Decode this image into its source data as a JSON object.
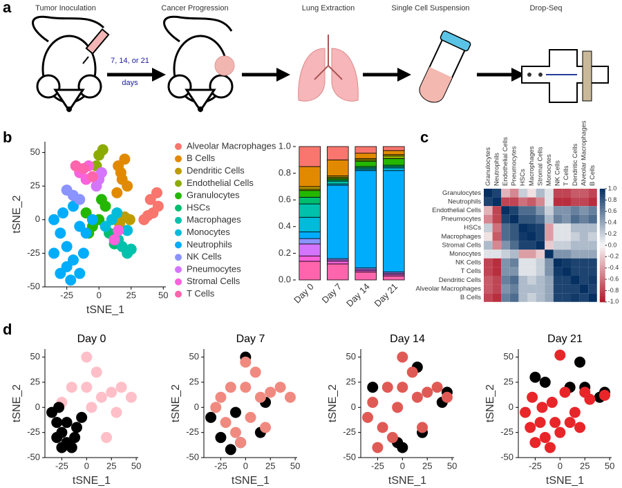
{
  "panel_labels": {
    "a": "a",
    "b": "b",
    "c": "c",
    "d": "d"
  },
  "schematic": {
    "steps": [
      "Tumor Inoculation",
      "Cancer Progression",
      "Lung Extraction",
      "Single Cell Suspension",
      "Drop-Seq"
    ],
    "interval": "7, 14, or 21",
    "interval_unit": "days"
  },
  "chart_data": [
    {
      "type": "scatter",
      "xlabel": "tSNE_1",
      "ylabel": "tSNE_2",
      "xlim": [
        -42,
        52
      ],
      "ylim": [
        -50,
        58
      ],
      "xticks": [
        -25,
        0,
        25,
        50
      ],
      "yticks": [
        -50,
        -25,
        0,
        25,
        50
      ],
      "series": [
        {
          "name": "Alveolar Macrophages",
          "color": "#F8766D",
          "x": [
            40,
            45,
            42,
            38,
            46,
            35
          ],
          "y": [
            15,
            20,
            5,
            3,
            10,
            0
          ]
        },
        {
          "name": "B Cells",
          "color": "#E18A00",
          "x": [
            15,
            18,
            20,
            14,
            22,
            17
          ],
          "y": [
            40,
            30,
            45,
            20,
            25,
            35
          ]
        },
        {
          "name": "Dendritic Cells",
          "color": "#BE9C00",
          "x": [
            16,
            20,
            24
          ],
          "y": [
            -3,
            2,
            0
          ]
        },
        {
          "name": "Endothelial Cells",
          "color": "#8CAB00",
          "x": [
            0,
            3,
            -2
          ],
          "y": [
            48,
            52,
            40
          ]
        },
        {
          "name": "Granulocytes",
          "color": "#24B700",
          "x": [
            -10,
            -5,
            0,
            5,
            -8,
            2
          ],
          "y": [
            5,
            -5,
            0,
            10,
            -10,
            15
          ]
        },
        {
          "name": "HSCs",
          "color": "#00BE70",
          "x": [
            12,
            8
          ],
          "y": [
            -18,
            -10
          ]
        },
        {
          "name": "Macrophages",
          "color": "#00C1AB",
          "x": [
            18,
            22,
            15,
            25
          ],
          "y": [
            -20,
            -25,
            -15,
            -22
          ]
        },
        {
          "name": "Monocytes",
          "color": "#00BBDA",
          "x": [
            5,
            10,
            14,
            22
          ],
          "y": [
            -5,
            0,
            5,
            -8
          ]
        },
        {
          "name": "Neutrophils",
          "color": "#00ACFC",
          "x": [
            -35,
            -30,
            -25,
            -20,
            -15,
            -10,
            -5,
            -35,
            -28,
            -20,
            -12,
            -30,
            -22,
            -15,
            -25
          ],
          "y": [
            0,
            -10,
            -20,
            -30,
            -40,
            -10,
            0,
            -25,
            5,
            10,
            -25,
            -40,
            -45,
            -5,
            -35
          ]
        },
        {
          "name": "NK Cells",
          "color": "#8B93FF",
          "x": [
            -25,
            -20,
            -15
          ],
          "y": [
            22,
            18,
            15
          ]
        },
        {
          "name": "Pneumocytes",
          "color": "#D575FE",
          "x": [
            0,
            -2,
            2
          ],
          "y": [
            30,
            25,
            35
          ]
        },
        {
          "name": "Stromal Cells",
          "color": "#F962DD",
          "x": [
            -15,
            -10,
            -8,
            12,
            15
          ],
          "y": [
            35,
            30,
            40,
            -15,
            -8
          ]
        },
        {
          "name": "T Cells",
          "color": "#FF65AC",
          "x": [
            -18,
            -12,
            -5
          ],
          "y": [
            40,
            38,
            32
          ]
        }
      ]
    },
    {
      "type": "bar",
      "stacked": true,
      "categories": [
        "Day 0",
        "Day 7",
        "Day 14",
        "Day 21"
      ],
      "ylim": [
        0,
        1
      ],
      "yticks": [
        {
          "value": 0,
          "label": "0.0"
        },
        0.2,
        0.4,
        0.6,
        0.8,
        {
          "value": 1,
          "label": "1.0"
        }
      ],
      "series": [
        {
          "color": "#FF65AC",
          "values": [
            0.14,
            0.12,
            0.06,
            0.03
          ]
        },
        {
          "color": "#F962DD",
          "values": [
            0.04,
            0.02,
            0.01,
            0.01
          ]
        },
        {
          "color": "#D575FE",
          "values": [
            0.09,
            0.01,
            0.01,
            0.01
          ]
        },
        {
          "color": "#8B93FF",
          "values": [
            0.04,
            0.01,
            0.01,
            0.01
          ]
        },
        {
          "color": "#00ACFC",
          "values": [
            0.05,
            0.55,
            0.73,
            0.76
          ]
        },
        {
          "color": "#00BBDA",
          "values": [
            0.11,
            0.01,
            0.01,
            0.02
          ]
        },
        {
          "color": "#00C1AB",
          "values": [
            0.1,
            0.02,
            0.01,
            0.01
          ]
        },
        {
          "color": "#00BE70",
          "values": [
            0.05,
            0.01,
            0.01,
            0.01
          ]
        },
        {
          "color": "#24B700",
          "values": [
            0.05,
            0.01,
            0.04,
            0.05
          ]
        },
        {
          "color": "#8CAB00",
          "values": [
            0.01,
            0.01,
            0.01,
            0.02
          ]
        },
        {
          "color": "#BE9C00",
          "values": [
            0.02,
            0.01,
            0.01,
            0.01
          ]
        },
        {
          "color": "#E18A00",
          "values": [
            0.15,
            0.12,
            0.04,
            0.03
          ]
        },
        {
          "color": "#F8766D",
          "values": [
            0.15,
            0.1,
            0.05,
            0.03
          ]
        }
      ]
    },
    {
      "type": "heatmap",
      "zlim": [
        -1,
        1
      ],
      "rows": [
        "Granulocytes",
        "Neutrophils",
        "Endothelial Cells",
        "Pneumocytes",
        "HSCs",
        "Macrophages",
        "Stromal Cells",
        "Monocytes",
        "NK Cells",
        "T Cells",
        "Dendritic Cells",
        "Alveolar Macrophages",
        "B Cells"
      ],
      "columns": [
        "Granulocytes",
        "Neutrophils",
        "Endothelial Cells",
        "Pneumocytes",
        "HSCs",
        "Macrophages",
        "Stromal Cells",
        "Monocytes",
        "NK Cells",
        "T Cells",
        "Dendritic Cells",
        "Alveolar Macrophages",
        "B Cells"
      ],
      "values": [
        [
          1,
          0.9,
          -0.3,
          -0.5,
          0.2,
          -0.1,
          0.3,
          0.1,
          -0.8,
          -0.8,
          -0.7,
          -0.7,
          -0.8
        ],
        [
          0.9,
          1,
          -0.8,
          -0.8,
          -0.6,
          -0.7,
          -0.5,
          0.1,
          -0.9,
          -0.9,
          -0.8,
          -0.8,
          -0.9
        ],
        [
          -0.3,
          -0.8,
          1,
          0.9,
          0.7,
          0.7,
          0.5,
          0.2,
          0.5,
          0.5,
          0.6,
          0.5,
          0.6
        ],
        [
          -0.5,
          -0.8,
          0.9,
          1,
          0.8,
          0.8,
          0.7,
          0.3,
          0.6,
          0.5,
          0.7,
          0.6,
          0.7
        ],
        [
          0.2,
          -0.6,
          0.7,
          0.8,
          1,
          0.95,
          0.9,
          -0.4,
          0.1,
          0.1,
          0.3,
          0.3,
          0.3
        ],
        [
          -0.1,
          -0.7,
          0.7,
          0.8,
          0.95,
          1,
          0.9,
          -0.4,
          0.1,
          0.1,
          0.2,
          0.3,
          0.2
        ],
        [
          0.3,
          -0.5,
          0.5,
          0.7,
          0.9,
          0.9,
          1,
          -0.2,
          0.2,
          0.2,
          0.3,
          0.3,
          0.3
        ],
        [
          0.1,
          0.1,
          0.2,
          0.3,
          -0.4,
          -0.4,
          -0.2,
          1,
          0.5,
          0.5,
          0.4,
          0.4,
          0.4
        ],
        [
          -0.8,
          -0.9,
          0.5,
          0.6,
          0.1,
          0.1,
          0.2,
          0.5,
          1,
          0.95,
          0.9,
          0.9,
          0.9
        ],
        [
          -0.8,
          -0.9,
          0.5,
          0.5,
          0.1,
          0.1,
          0.2,
          0.5,
          0.95,
          1,
          0.9,
          0.9,
          0.9
        ],
        [
          -0.7,
          -0.8,
          0.6,
          0.7,
          0.3,
          0.2,
          0.3,
          0.4,
          0.9,
          0.9,
          1,
          0.9,
          0.95
        ],
        [
          -0.7,
          -0.8,
          0.5,
          0.6,
          0.3,
          0.3,
          0.3,
          0.4,
          0.9,
          0.9,
          0.9,
          1,
          0.9
        ],
        [
          -0.8,
          -0.9,
          0.6,
          0.7,
          0.3,
          0.2,
          0.3,
          0.4,
          0.9,
          0.9,
          0.95,
          0.9,
          1
        ]
      ],
      "colorbar_ticks": [
        {
          "value": 1,
          "label": "1.0"
        },
        0.8,
        0.6,
        0.4,
        0.2,
        {
          "value": 0,
          "label": "0.0"
        },
        -0.2,
        -0.4,
        -0.6,
        -0.8,
        {
          "value": -1,
          "label": "-1.0"
        }
      ]
    },
    {
      "type": "scatter",
      "title": "Day 0",
      "xlabel": "tSNE_1",
      "ylabel": "tSNE_2",
      "xlim": [
        -42,
        52
      ],
      "ylim": [
        -50,
        58
      ],
      "xticks": [
        -25,
        0,
        25,
        50
      ],
      "yticks": [
        -50,
        -25,
        0,
        25,
        50
      ],
      "series": [
        {
          "color": "#ffbfc8",
          "x": [
            -25,
            0,
            10,
            15,
            25,
            35,
            45,
            0,
            -15,
            20,
            30,
            5
          ],
          "y": [
            5,
            20,
            35,
            10,
            15,
            20,
            10,
            50,
            20,
            -30,
            -5,
            0
          ]
        },
        {
          "color": "#000000",
          "x": [
            -35,
            -30,
            -25,
            -20,
            -15,
            -10,
            -5,
            -30,
            -20,
            -12,
            -25,
            -28
          ],
          "y": [
            -5,
            -15,
            -25,
            -35,
            -40,
            -20,
            -10,
            -30,
            -15,
            -30,
            -40,
            0
          ]
        }
      ]
    },
    {
      "type": "scatter",
      "title": "Day 7",
      "xlabel": "tSNE_1",
      "ylabel": "tSNE_2",
      "xlim": [
        -42,
        52
      ],
      "ylim": [
        -50,
        58
      ],
      "xticks": [
        -25,
        0,
        25,
        50
      ],
      "yticks": [
        -50,
        -25,
        0,
        25,
        50
      ],
      "series": [
        {
          "color": "#000000",
          "x": [
            -35,
            -25,
            -15,
            -5,
            0,
            15,
            20,
            -10
          ],
          "y": [
            -10,
            -30,
            -42,
            -35,
            50,
            -25,
            5,
            -5
          ]
        },
        {
          "color": "#f08a80",
          "x": [
            -30,
            -20,
            -10,
            0,
            10,
            15,
            25,
            35,
            45,
            0,
            -15,
            20,
            -25,
            5,
            -5
          ],
          "y": [
            0,
            -15,
            -25,
            20,
            35,
            10,
            15,
            20,
            10,
            45,
            20,
            -20,
            10,
            -10,
            -35
          ]
        }
      ]
    },
    {
      "type": "scatter",
      "title": "Day 14",
      "xlabel": "tSNE_1",
      "ylabel": "tSNE_2",
      "xlim": [
        -42,
        52
      ],
      "ylim": [
        -50,
        58
      ],
      "xticks": [
        -25,
        0,
        25,
        50
      ],
      "yticks": [
        -50,
        -25,
        0,
        25,
        50
      ],
      "series": [
        {
          "color": "#000000",
          "x": [
            -5,
            0,
            20,
            40,
            45,
            -30,
            15
          ],
          "y": [
            -35,
            -40,
            -25,
            5,
            15,
            20,
            40
          ]
        },
        {
          "color": "#e05a55",
          "x": [
            -35,
            -30,
            -20,
            -10,
            -25,
            0,
            10,
            15,
            25,
            35,
            0,
            -15,
            20,
            -5,
            45
          ],
          "y": [
            -10,
            5,
            -20,
            -30,
            -40,
            20,
            35,
            10,
            15,
            20,
            50,
            20,
            -20,
            0,
            10
          ]
        }
      ]
    },
    {
      "type": "scatter",
      "title": "Day 21",
      "xlabel": "tSNE_1",
      "ylabel": "tSNE_2",
      "xlim": [
        -42,
        52
      ],
      "ylim": [
        -50,
        58
      ],
      "xticks": [
        -25,
        0,
        25,
        50
      ],
      "yticks": [
        -50,
        -25,
        0,
        25,
        50
      ],
      "series": [
        {
          "color": "#000000",
          "x": [
            -25,
            -15,
            10,
            25,
            40,
            45,
            20
          ],
          "y": [
            30,
            25,
            20,
            20,
            10,
            15,
            45
          ]
        },
        {
          "color": "#e8262a",
          "x": [
            -35,
            -30,
            -25,
            -20,
            -15,
            -10,
            -5,
            -28,
            -18,
            -8,
            0,
            10,
            15,
            20,
            5,
            0,
            45,
            25,
            30
          ],
          "y": [
            -5,
            -20,
            -35,
            -15,
            -30,
            -40,
            -15,
            10,
            0,
            5,
            -25,
            -15,
            -5,
            -20,
            15,
            52,
            12,
            15,
            8
          ]
        }
      ]
    }
  ]
}
